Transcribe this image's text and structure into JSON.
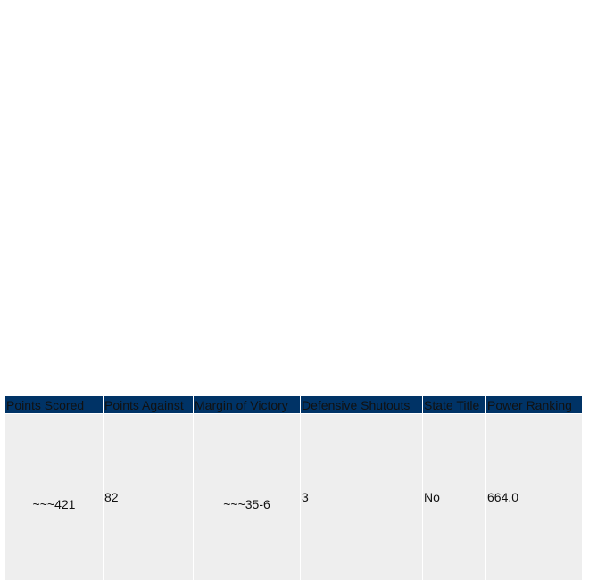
{
  "table": {
    "headers": [
      "Points Scored",
      "Points Against",
      "Margin of Victory",
      "Defensive Shutouts",
      "State Title",
      "Power Ranking"
    ],
    "rows": [
      [
        "~~~421",
        "82",
        "~~~35-6",
        "3",
        "No",
        "664.0"
      ]
    ]
  }
}
